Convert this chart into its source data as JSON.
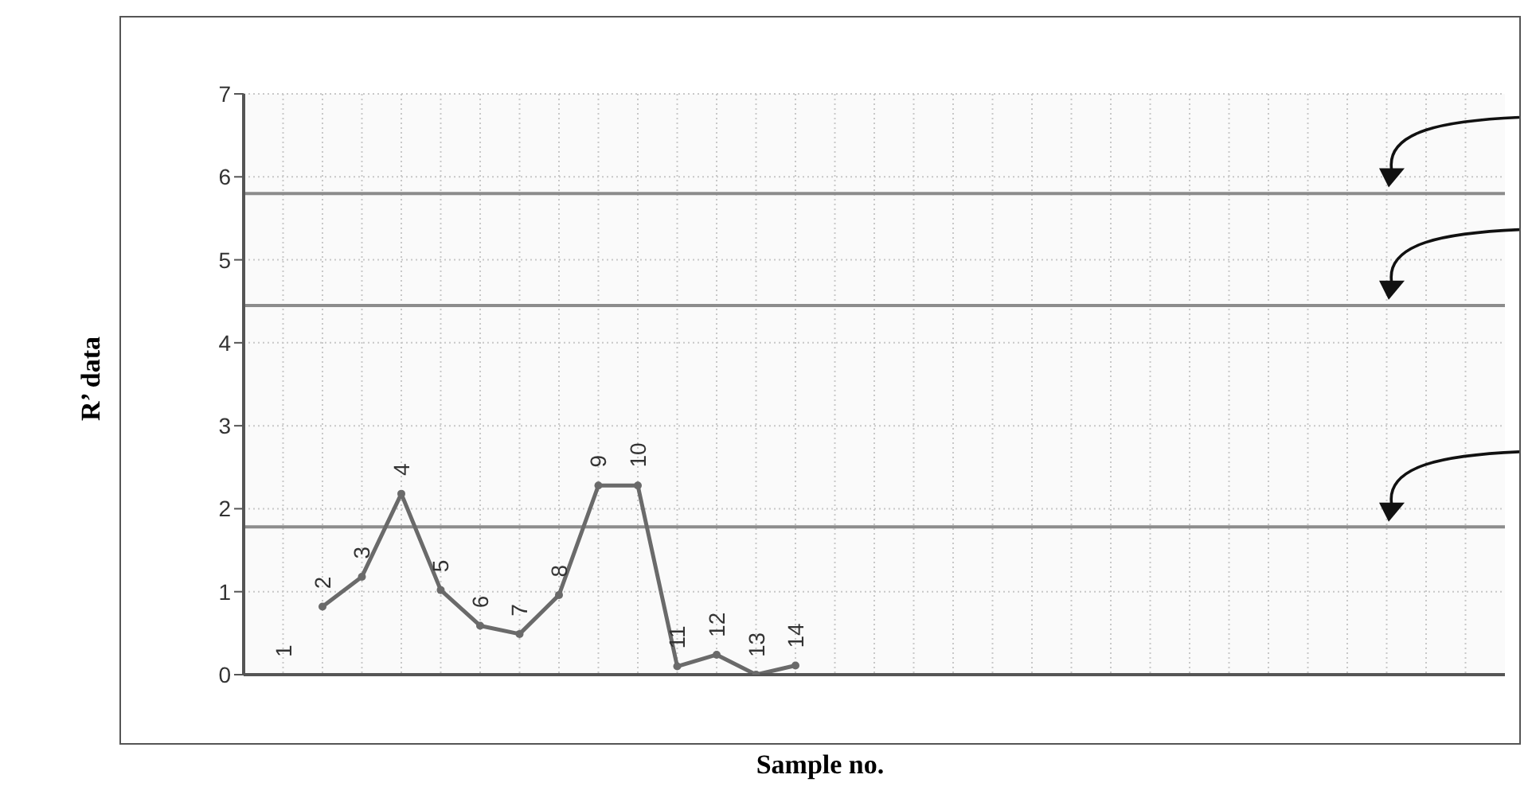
{
  "chart_data": {
    "type": "line",
    "xlabel": "Sample no.",
    "ylabel": "R’ data",
    "categories": [
      null,
      "1",
      "2",
      "3",
      "4",
      "5",
      "6",
      "7",
      "8",
      "9",
      "10",
      "11",
      "12",
      "13",
      "14",
      null,
      null,
      null,
      null,
      null,
      null,
      null,
      null,
      null,
      null,
      null,
      null,
      null,
      null,
      null,
      null,
      null
    ],
    "series": [
      {
        "color": "#6a6a6a",
        "values": [
          null,
          null,
          0.82,
          1.18,
          2.18,
          1.02,
          0.59,
          0.49,
          0.96,
          2.28,
          2.28,
          0.1,
          0.24,
          0,
          0.11,
          null,
          null,
          null,
          null,
          null,
          null,
          null,
          null,
          null,
          null,
          null,
          null,
          null,
          null,
          null,
          null,
          null
        ]
      }
    ],
    "ylim": [
      0,
      7
    ],
    "yticks": [
      0,
      1,
      2,
      3,
      4,
      5,
      6,
      7
    ],
    "grid": true,
    "marker": "circle",
    "line_style": "solid",
    "ref_lines": [
      {
        "axis": "y",
        "value": 5.8,
        "color": "#8c8c8c"
      },
      {
        "axis": "y",
        "value": 4.45,
        "color": "#8c8c8c"
      },
      {
        "axis": "y",
        "value": 1.78,
        "color": "#8c8c8c"
      }
    ]
  }
}
